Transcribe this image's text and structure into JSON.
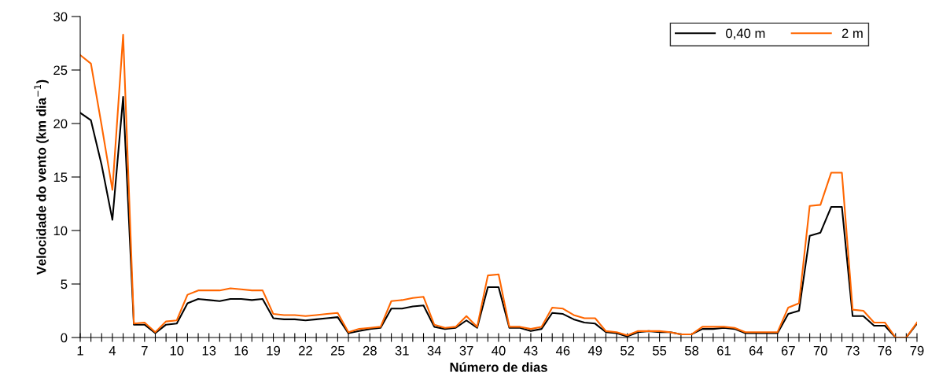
{
  "chart_data": {
    "type": "line",
    "xlabel": "Número de dias",
    "ylabel": "Velocidade do vento (km dia$^{−1}$)",
    "categories": [
      "1",
      null,
      null,
      "4",
      null,
      null,
      "7",
      null,
      null,
      "10",
      null,
      null,
      "13",
      null,
      null,
      "16",
      null,
      null,
      "19",
      null,
      null,
      "22",
      null,
      null,
      "25",
      null,
      null,
      "28",
      null,
      null,
      "31",
      null,
      null,
      "34",
      null,
      null,
      "37",
      null,
      null,
      "40",
      null,
      null,
      "43",
      null,
      null,
      "46",
      null,
      null,
      "49",
      null,
      null,
      "52",
      null,
      null,
      "55",
      null,
      null,
      "58",
      null,
      null,
      "61",
      null,
      null,
      "64",
      null,
      null,
      "67",
      null,
      null,
      "70",
      null,
      null,
      "73",
      null,
      null,
      "76",
      null,
      null,
      "79"
    ],
    "series": [
      {
        "name": "0,40 m",
        "color": "#000000",
        "values": [
          21,
          20.3,
          16.1,
          11,
          22.5,
          1.2,
          1.2,
          0.4,
          1.2,
          1.3,
          3.2,
          3.6,
          3.5,
          3.4,
          3.6,
          3.6,
          3.5,
          3.6,
          1.8,
          1.7,
          1.7,
          1.6,
          1.7,
          1.8,
          1.9,
          0.4,
          0.6,
          0.8,
          0.9,
          2.7,
          2.7,
          2.9,
          3.0,
          1.0,
          0.8,
          0.9,
          1.6,
          0.9,
          4.7,
          4.7,
          0.9,
          0.9,
          0.6,
          0.8,
          2.3,
          2.2,
          1.7,
          1.4,
          1.3,
          0.5,
          0.4,
          0.1,
          0.5,
          0.6,
          0.5,
          0.5,
          0.3,
          0.3,
          0.8,
          0.8,
          0.9,
          0.8,
          0.4,
          0.4,
          0.4,
          0.4,
          2.2,
          2.5,
          9.5,
          9.8,
          12.2,
          12.2,
          2.0,
          2.0,
          1.1,
          1.1,
          0,
          0,
          1.3
        ]
      },
      {
        "name": "2 m",
        "color": "#ff6600",
        "values": [
          26.4,
          25.6,
          19.8,
          13.8,
          28.3,
          1.3,
          1.4,
          0.5,
          1.5,
          1.6,
          4.0,
          4.4,
          4.4,
          4.4,
          4.6,
          4.5,
          4.4,
          4.4,
          2.2,
          2.1,
          2.1,
          2.0,
          2.1,
          2.2,
          2.3,
          0.5,
          0.8,
          0.9,
          1.0,
          3.4,
          3.5,
          3.7,
          3.8,
          1.2,
          0.9,
          1.0,
          2.0,
          1.0,
          5.8,
          5.9,
          1.0,
          1.0,
          0.8,
          1.0,
          2.8,
          2.7,
          2.1,
          1.8,
          1.8,
          0.6,
          0.5,
          0.2,
          0.6,
          0.6,
          0.6,
          0.5,
          0.3,
          0.3,
          1.0,
          1.0,
          1.0,
          0.9,
          0.5,
          0.5,
          0.5,
          0.5,
          2.8,
          3.2,
          12.3,
          12.4,
          15.4,
          15.4,
          2.6,
          2.5,
          1.4,
          1.4,
          0,
          0,
          1.4
        ]
      }
    ],
    "ylim": [
      0,
      30
    ],
    "yticks": [
      0,
      5,
      10,
      15,
      20,
      25,
      30
    ],
    "grid": false,
    "legend": "top right",
    "marker": "none",
    "line_style": "solid"
  }
}
